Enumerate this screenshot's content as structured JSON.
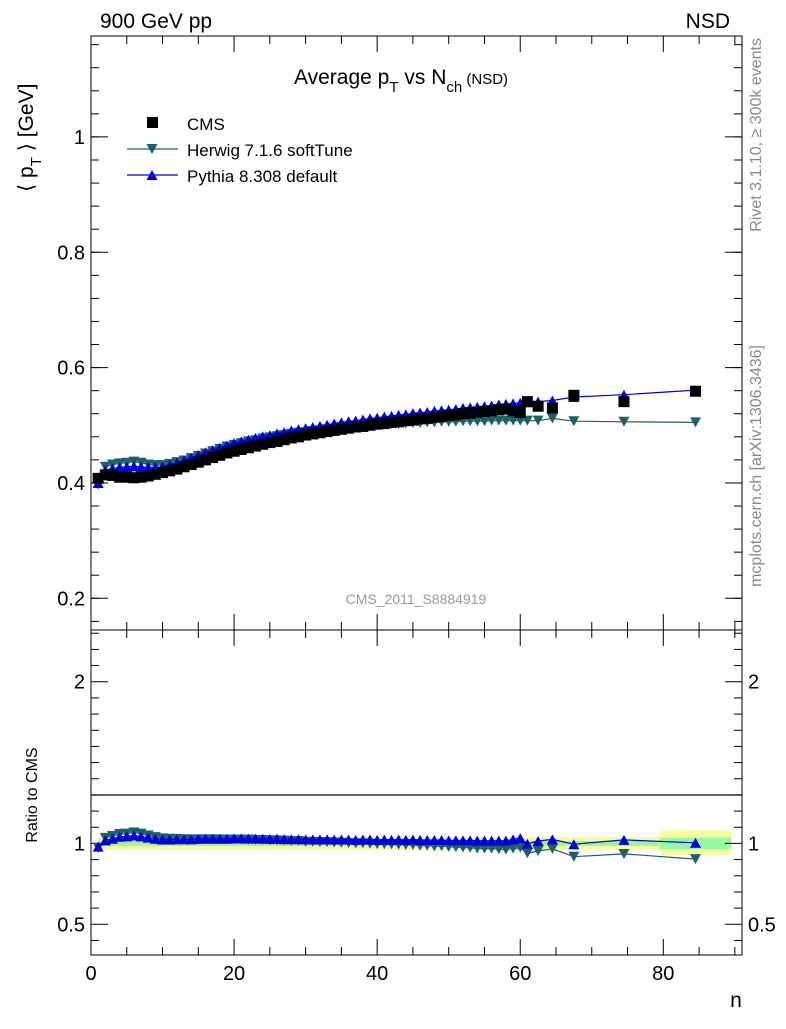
{
  "header": {
    "left": "900 GeV pp",
    "right": "NSD"
  },
  "side_labels": {
    "rivet": "Rivet 3.1.10, ≥ 300k events",
    "mcplots": "mcplots.cern.ch [arXiv:1306.3436]"
  },
  "colors": {
    "cms": "#000000",
    "herwig": "#1f5f66",
    "pythia": "#0000dd",
    "band_inner": "#99f5a8",
    "band_outer": "#f5ff99"
  },
  "chart_data": [
    {
      "type": "scatter",
      "panel": "main",
      "title": "Average p_T vs N_ch (NSD)",
      "title_parts": {
        "a": "Average p",
        "a_sub": "T",
        "b": " vs N",
        "b_sub": "ch",
        "c": " (NSD)"
      },
      "ylabel": "⟨ p_T ⟩ [GeV]",
      "ylabel_parts": {
        "a": "⟨ p",
        "sub": "T",
        "b": " ⟩ [GeV]"
      },
      "watermark": "CMS_2011_S8884919",
      "xlim": [
        0,
        91
      ],
      "ylim": [
        0.145,
        1.175
      ],
      "yticks": [
        0.2,
        0.4,
        0.6,
        0.8,
        1
      ],
      "ytick_labels": [
        "0.2",
        "0.4",
        "0.6",
        "0.8",
        "1"
      ],
      "legend_position": "top-left",
      "series": [
        {
          "name": "CMS",
          "marker": "square",
          "x": [
            1,
            2,
            3,
            4,
            5,
            6,
            7,
            8,
            9,
            10,
            11,
            12,
            13,
            14,
            15,
            16,
            17,
            18,
            19,
            20,
            21,
            22,
            23,
            24,
            25,
            26,
            27,
            28,
            29,
            30,
            31,
            32,
            33,
            34,
            35,
            36,
            37,
            38,
            39,
            40,
            41,
            42,
            43,
            44,
            45,
            46,
            47,
            48,
            49,
            50,
            51,
            52,
            53,
            54,
            55,
            56,
            57,
            58,
            59,
            60,
            61,
            62.5,
            64.5,
            67.5,
            74.5,
            84.5
          ],
          "y": [
            0.408,
            0.414,
            0.413,
            0.41,
            0.41,
            0.409,
            0.41,
            0.412,
            0.415,
            0.418,
            0.421,
            0.424,
            0.428,
            0.432,
            0.436,
            0.44,
            0.444,
            0.448,
            0.452,
            0.455,
            0.458,
            0.461,
            0.464,
            0.467,
            0.47,
            0.472,
            0.475,
            0.478,
            0.48,
            0.483,
            0.485,
            0.487,
            0.489,
            0.491,
            0.493,
            0.495,
            0.497,
            0.498,
            0.5,
            0.502,
            0.503,
            0.505,
            0.506,
            0.508,
            0.509,
            0.511,
            0.512,
            0.514,
            0.515,
            0.517,
            0.518,
            0.52,
            0.521,
            0.523,
            0.524,
            0.525,
            0.527,
            0.528,
            0.525,
            0.522,
            0.541,
            0.533,
            0.53,
            0.552,
            0.541,
            0.559
          ]
        },
        {
          "name": "Herwig 7.1.6 softTune",
          "marker": "triangle-down",
          "x": [
            1,
            2,
            3,
            4,
            5,
            6,
            7,
            8,
            9,
            10,
            11,
            12,
            13,
            14,
            15,
            16,
            17,
            18,
            19,
            20,
            21,
            22,
            23,
            24,
            25,
            26,
            27,
            28,
            29,
            30,
            31,
            32,
            33,
            34,
            35,
            36,
            37,
            38,
            39,
            40,
            41,
            42,
            43,
            44,
            45,
            46,
            47,
            48,
            49,
            50,
            51,
            52,
            53,
            54,
            55,
            56,
            57,
            58,
            59,
            60,
            61,
            62.5,
            64.5,
            67.5,
            74.5,
            84.5
          ],
          "y": [
            0.397,
            0.428,
            0.432,
            0.434,
            0.435,
            0.437,
            0.435,
            0.432,
            0.431,
            0.431,
            0.433,
            0.436,
            0.439,
            0.443,
            0.447,
            0.451,
            0.455,
            0.459,
            0.463,
            0.466,
            0.469,
            0.472,
            0.474,
            0.477,
            0.479,
            0.481,
            0.483,
            0.485,
            0.487,
            0.488,
            0.49,
            0.491,
            0.493,
            0.494,
            0.495,
            0.496,
            0.497,
            0.498,
            0.499,
            0.5,
            0.501,
            0.502,
            0.502,
            0.503,
            0.504,
            0.504,
            0.505,
            0.505,
            0.506,
            0.506,
            0.506,
            0.507,
            0.507,
            0.507,
            0.507,
            0.508,
            0.508,
            0.508,
            0.508,
            0.508,
            0.508,
            0.508,
            0.512,
            0.507,
            0.506,
            0.505
          ]
        },
        {
          "name": "Pythia 8.308 default",
          "marker": "triangle-up",
          "x": [
            1,
            2,
            3,
            4,
            5,
            6,
            7,
            8,
            9,
            10,
            11,
            12,
            13,
            14,
            15,
            16,
            17,
            18,
            19,
            20,
            21,
            22,
            23,
            24,
            25,
            26,
            27,
            28,
            29,
            30,
            31,
            32,
            33,
            34,
            35,
            36,
            37,
            38,
            39,
            40,
            41,
            42,
            43,
            44,
            45,
            46,
            47,
            48,
            49,
            50,
            51,
            52,
            53,
            54,
            55,
            56,
            57,
            58,
            59,
            60,
            61,
            62.5,
            64.5,
            67.5,
            74.5,
            84.5
          ],
          "y": [
            0.4,
            0.422,
            0.425,
            0.427,
            0.428,
            0.429,
            0.428,
            0.427,
            0.427,
            0.428,
            0.431,
            0.435,
            0.439,
            0.443,
            0.448,
            0.453,
            0.457,
            0.461,
            0.465,
            0.469,
            0.472,
            0.475,
            0.478,
            0.481,
            0.483,
            0.486,
            0.488,
            0.491,
            0.493,
            0.495,
            0.497,
            0.499,
            0.501,
            0.503,
            0.505,
            0.507,
            0.508,
            0.51,
            0.512,
            0.513,
            0.515,
            0.516,
            0.518,
            0.519,
            0.521,
            0.522,
            0.523,
            0.525,
            0.526,
            0.527,
            0.528,
            0.53,
            0.531,
            0.532,
            0.533,
            0.534,
            0.536,
            0.537,
            0.538,
            0.539,
            0.54,
            0.541,
            0.543,
            0.549,
            0.553,
            0.561
          ]
        }
      ]
    },
    {
      "type": "scatter",
      "panel": "ratio",
      "ylabel": "Ratio to CMS",
      "xlabel": "n",
      "xlim": [
        0,
        91
      ],
      "ylim": [
        0.31,
        2.32
      ],
      "xticks": [
        0,
        20,
        40,
        60,
        80
      ],
      "xtick_labels": [
        "0",
        "20",
        "40",
        "60",
        "80"
      ],
      "yticks": [
        0.5,
        1,
        2
      ],
      "ytick_labels": [
        "0.5",
        "1",
        "2"
      ],
      "bands": [
        {
          "x": [
            1,
            79.5
          ],
          "inner": [
            0.985,
            1.015
          ],
          "outer": [
            0.96,
            1.04
          ]
        },
        {
          "x": [
            79.5,
            89.5
          ],
          "inner": [
            0.965,
            1.035
          ],
          "outer": [
            0.93,
            1.08
          ]
        }
      ],
      "series": [
        {
          "name": "Herwig 7.1.6 softTune",
          "marker": "triangle-down",
          "x": [
            1,
            2,
            3,
            4,
            5,
            6,
            7,
            8,
            9,
            10,
            11,
            12,
            13,
            14,
            15,
            16,
            17,
            18,
            19,
            20,
            21,
            22,
            23,
            24,
            25,
            26,
            27,
            28,
            29,
            30,
            31,
            32,
            33,
            34,
            35,
            36,
            37,
            38,
            39,
            40,
            41,
            42,
            43,
            44,
            45,
            46,
            47,
            48,
            49,
            50,
            51,
            52,
            53,
            54,
            55,
            56,
            57,
            58,
            59,
            60,
            61,
            62.5,
            64.5,
            67.5,
            74.5,
            84.5
          ],
          "y": [
            0.973,
            1.034,
            1.046,
            1.058,
            1.061,
            1.068,
            1.061,
            1.049,
            1.039,
            1.031,
            1.029,
            1.028,
            1.026,
            1.025,
            1.025,
            1.025,
            1.025,
            1.025,
            1.024,
            1.024,
            1.024,
            1.024,
            1.022,
            1.021,
            1.019,
            1.019,
            1.017,
            1.015,
            1.015,
            1.01,
            1.01,
            1.008,
            1.008,
            1.006,
            1.004,
            1.002,
            1.0,
            1.0,
            0.998,
            0.996,
            0.996,
            0.994,
            0.992,
            0.99,
            0.99,
            0.986,
            0.986,
            0.982,
            0.983,
            0.979,
            0.977,
            0.975,
            0.973,
            0.969,
            0.968,
            0.968,
            0.964,
            0.962,
            0.968,
            0.973,
            0.939,
            0.953,
            0.966,
            0.918,
            0.935,
            0.903
          ]
        },
        {
          "name": "Pythia 8.308 default",
          "marker": "triangle-up",
          "x": [
            1,
            2,
            3,
            4,
            5,
            6,
            7,
            8,
            9,
            10,
            11,
            12,
            13,
            14,
            15,
            16,
            17,
            18,
            19,
            20,
            21,
            22,
            23,
            24,
            25,
            26,
            27,
            28,
            29,
            30,
            31,
            32,
            33,
            34,
            35,
            36,
            37,
            38,
            39,
            40,
            41,
            42,
            43,
            44,
            45,
            46,
            47,
            48,
            49,
            50,
            51,
            52,
            53,
            54,
            55,
            56,
            57,
            58,
            59,
            60,
            61,
            62.5,
            64.5,
            67.5,
            74.5,
            84.5
          ],
          "y": [
            0.98,
            1.019,
            1.029,
            1.041,
            1.044,
            1.049,
            1.044,
            1.036,
            1.029,
            1.024,
            1.024,
            1.026,
            1.026,
            1.025,
            1.028,
            1.03,
            1.029,
            1.029,
            1.029,
            1.031,
            1.031,
            1.03,
            1.03,
            1.03,
            1.028,
            1.03,
            1.027,
            1.027,
            1.027,
            1.025,
            1.025,
            1.025,
            1.025,
            1.024,
            1.024,
            1.024,
            1.022,
            1.024,
            1.024,
            1.022,
            1.024,
            1.022,
            1.024,
            1.022,
            1.024,
            1.022,
            1.021,
            1.021,
            1.021,
            1.019,
            1.019,
            1.019,
            1.019,
            1.017,
            1.017,
            1.017,
            1.017,
            1.017,
            1.025,
            1.033,
            0.998,
            1.015,
            1.025,
            0.995,
            1.022,
            1.004
          ]
        }
      ]
    }
  ]
}
